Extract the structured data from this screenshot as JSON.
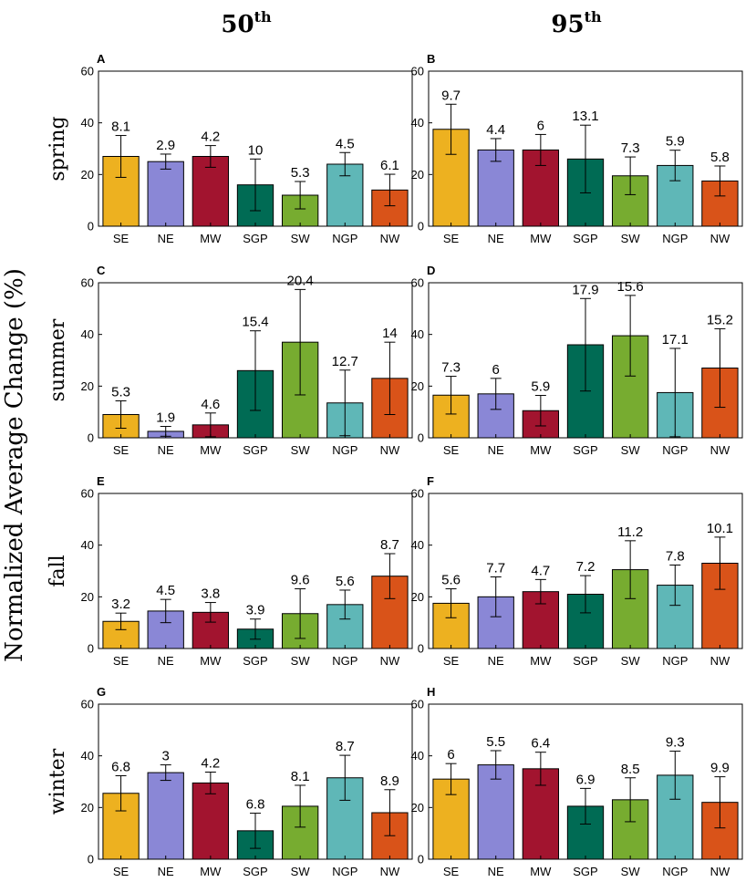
{
  "figure": {
    "ylabel": "Normalized Average Change (%)",
    "col_titles": [
      {
        "main": "50",
        "sup": "th"
      },
      {
        "main": "95",
        "sup": "th"
      }
    ]
  },
  "chart_data": [
    {
      "type": "bar",
      "panel": "A",
      "season": "spring",
      "percentile": "50th",
      "ylim": [
        0,
        60
      ],
      "yticks": [
        0,
        20,
        40,
        60
      ],
      "categories": [
        "SE",
        "NE",
        "MW",
        "SGP",
        "SW",
        "NGP",
        "NW"
      ],
      "values": [
        27,
        25,
        27,
        16,
        12,
        24,
        14
      ],
      "error_half_width": [
        8.1,
        2.9,
        4.2,
        10,
        5.3,
        4.5,
        6.1
      ],
      "data_labels": [
        "8.1",
        "2.9",
        "4.2",
        "10",
        "5.3",
        "4.5",
        "6.1"
      ],
      "colors": [
        "#EDB120",
        "#8A87D6",
        "#A2142F",
        "#006B54",
        "#77AC30",
        "#5FB7B7",
        "#D95319"
      ]
    },
    {
      "type": "bar",
      "panel": "B",
      "season": "spring",
      "percentile": "95th",
      "ylim": [
        0,
        60
      ],
      "yticks": [
        0,
        20,
        40,
        60
      ],
      "categories": [
        "SE",
        "NE",
        "MW",
        "SGP",
        "SW",
        "NGP",
        "NW"
      ],
      "values": [
        37.5,
        29.5,
        29.5,
        26,
        19.5,
        23.5,
        17.5
      ],
      "error_half_width": [
        9.7,
        4.4,
        6,
        13.1,
        7.3,
        5.9,
        5.8
      ],
      "data_labels": [
        "9.7",
        "4.4",
        "6",
        "13.1",
        "7.3",
        "5.9",
        "5.8"
      ],
      "colors": [
        "#EDB120",
        "#8A87D6",
        "#A2142F",
        "#006B54",
        "#77AC30",
        "#5FB7B7",
        "#D95319"
      ]
    },
    {
      "type": "bar",
      "panel": "C",
      "season": "summer",
      "percentile": "50th",
      "ylim": [
        0,
        60
      ],
      "yticks": [
        0,
        20,
        40,
        60
      ],
      "categories": [
        "SE",
        "NE",
        "MW",
        "SGP",
        "SW",
        "NGP",
        "NW"
      ],
      "values": [
        9,
        2.5,
        5,
        26,
        37,
        13.5,
        23
      ],
      "error_half_width": [
        5.3,
        1.9,
        4.6,
        15.4,
        20.4,
        12.7,
        14
      ],
      "data_labels": [
        "5.3",
        "1.9",
        "4.6",
        "15.4",
        "20.4",
        "12.7",
        "14"
      ],
      "colors": [
        "#EDB120",
        "#8A87D6",
        "#A2142F",
        "#006B54",
        "#77AC30",
        "#5FB7B7",
        "#D95319"
      ]
    },
    {
      "type": "bar",
      "panel": "D",
      "season": "summer",
      "percentile": "95th",
      "ylim": [
        0,
        60
      ],
      "yticks": [
        0,
        20,
        40,
        60
      ],
      "categories": [
        "SE",
        "NE",
        "MW",
        "SGP",
        "SW",
        "NGP",
        "NW"
      ],
      "values": [
        16.5,
        17,
        10.5,
        36,
        39.5,
        17.5,
        27
      ],
      "error_half_width": [
        7.3,
        6,
        5.9,
        17.9,
        15.6,
        17.1,
        15.2
      ],
      "data_labels": [
        "7.3",
        "6",
        "5.9",
        "17.9",
        "15.6",
        "17.1",
        "15.2"
      ],
      "colors": [
        "#EDB120",
        "#8A87D6",
        "#A2142F",
        "#006B54",
        "#77AC30",
        "#5FB7B7",
        "#D95319"
      ]
    },
    {
      "type": "bar",
      "panel": "E",
      "season": "fall",
      "percentile": "50th",
      "ylim": [
        0,
        60
      ],
      "yticks": [
        0,
        20,
        40,
        60
      ],
      "categories": [
        "SE",
        "NE",
        "MW",
        "SGP",
        "SW",
        "NGP",
        "NW"
      ],
      "values": [
        10.5,
        14.5,
        14,
        7.5,
        13.5,
        17,
        28
      ],
      "error_half_width": [
        3.2,
        4.5,
        3.8,
        3.9,
        9.6,
        5.6,
        8.7
      ],
      "data_labels": [
        "3.2",
        "4.5",
        "3.8",
        "3.9",
        "9.6",
        "5.6",
        "8.7"
      ],
      "colors": [
        "#EDB120",
        "#8A87D6",
        "#A2142F",
        "#006B54",
        "#77AC30",
        "#5FB7B7",
        "#D95319"
      ]
    },
    {
      "type": "bar",
      "panel": "F",
      "season": "fall",
      "percentile": "95th",
      "ylim": [
        0,
        60
      ],
      "yticks": [
        0,
        20,
        40,
        60
      ],
      "categories": [
        "SE",
        "NE",
        "MW",
        "SGP",
        "SW",
        "NGP",
        "NW"
      ],
      "values": [
        17.5,
        20,
        22,
        21,
        30.5,
        24.5,
        33
      ],
      "error_half_width": [
        5.6,
        7.7,
        4.7,
        7.2,
        11.2,
        7.8,
        10.1
      ],
      "data_labels": [
        "5.6",
        "7.7",
        "4.7",
        "7.2",
        "11.2",
        "7.8",
        "10.1"
      ],
      "colors": [
        "#EDB120",
        "#8A87D6",
        "#A2142F",
        "#006B54",
        "#77AC30",
        "#5FB7B7",
        "#D95319"
      ]
    },
    {
      "type": "bar",
      "panel": "G",
      "season": "winter",
      "percentile": "50th",
      "ylim": [
        0,
        60
      ],
      "yticks": [
        0,
        20,
        40,
        60
      ],
      "categories": [
        "SE",
        "NE",
        "MW",
        "SGP",
        "SW",
        "NGP",
        "NW"
      ],
      "values": [
        25.5,
        33.5,
        29.5,
        11,
        20.5,
        31.5,
        18
      ],
      "error_half_width": [
        6.8,
        3,
        4.2,
        6.8,
        8.1,
        8.7,
        8.9
      ],
      "data_labels": [
        "6.8",
        "3",
        "4.2",
        "6.8",
        "8.1",
        "8.7",
        "8.9"
      ],
      "colors": [
        "#EDB120",
        "#8A87D6",
        "#A2142F",
        "#006B54",
        "#77AC30",
        "#5FB7B7",
        "#D95319"
      ]
    },
    {
      "type": "bar",
      "panel": "H",
      "season": "winter",
      "percentile": "95th",
      "ylim": [
        0,
        60
      ],
      "yticks": [
        0,
        20,
        40,
        60
      ],
      "categories": [
        "SE",
        "NE",
        "MW",
        "SGP",
        "SW",
        "NGP",
        "NW"
      ],
      "values": [
        31,
        36.5,
        35,
        20.5,
        23,
        32.5,
        22
      ],
      "error_half_width": [
        6,
        5.5,
        6.4,
        6.9,
        8.5,
        9.3,
        9.9
      ],
      "data_labels": [
        "6",
        "5.5",
        "6.4",
        "6.9",
        "8.5",
        "9.3",
        "9.9"
      ],
      "colors": [
        "#EDB120",
        "#8A87D6",
        "#A2142F",
        "#006B54",
        "#77AC30",
        "#5FB7B7",
        "#D95319"
      ]
    }
  ]
}
